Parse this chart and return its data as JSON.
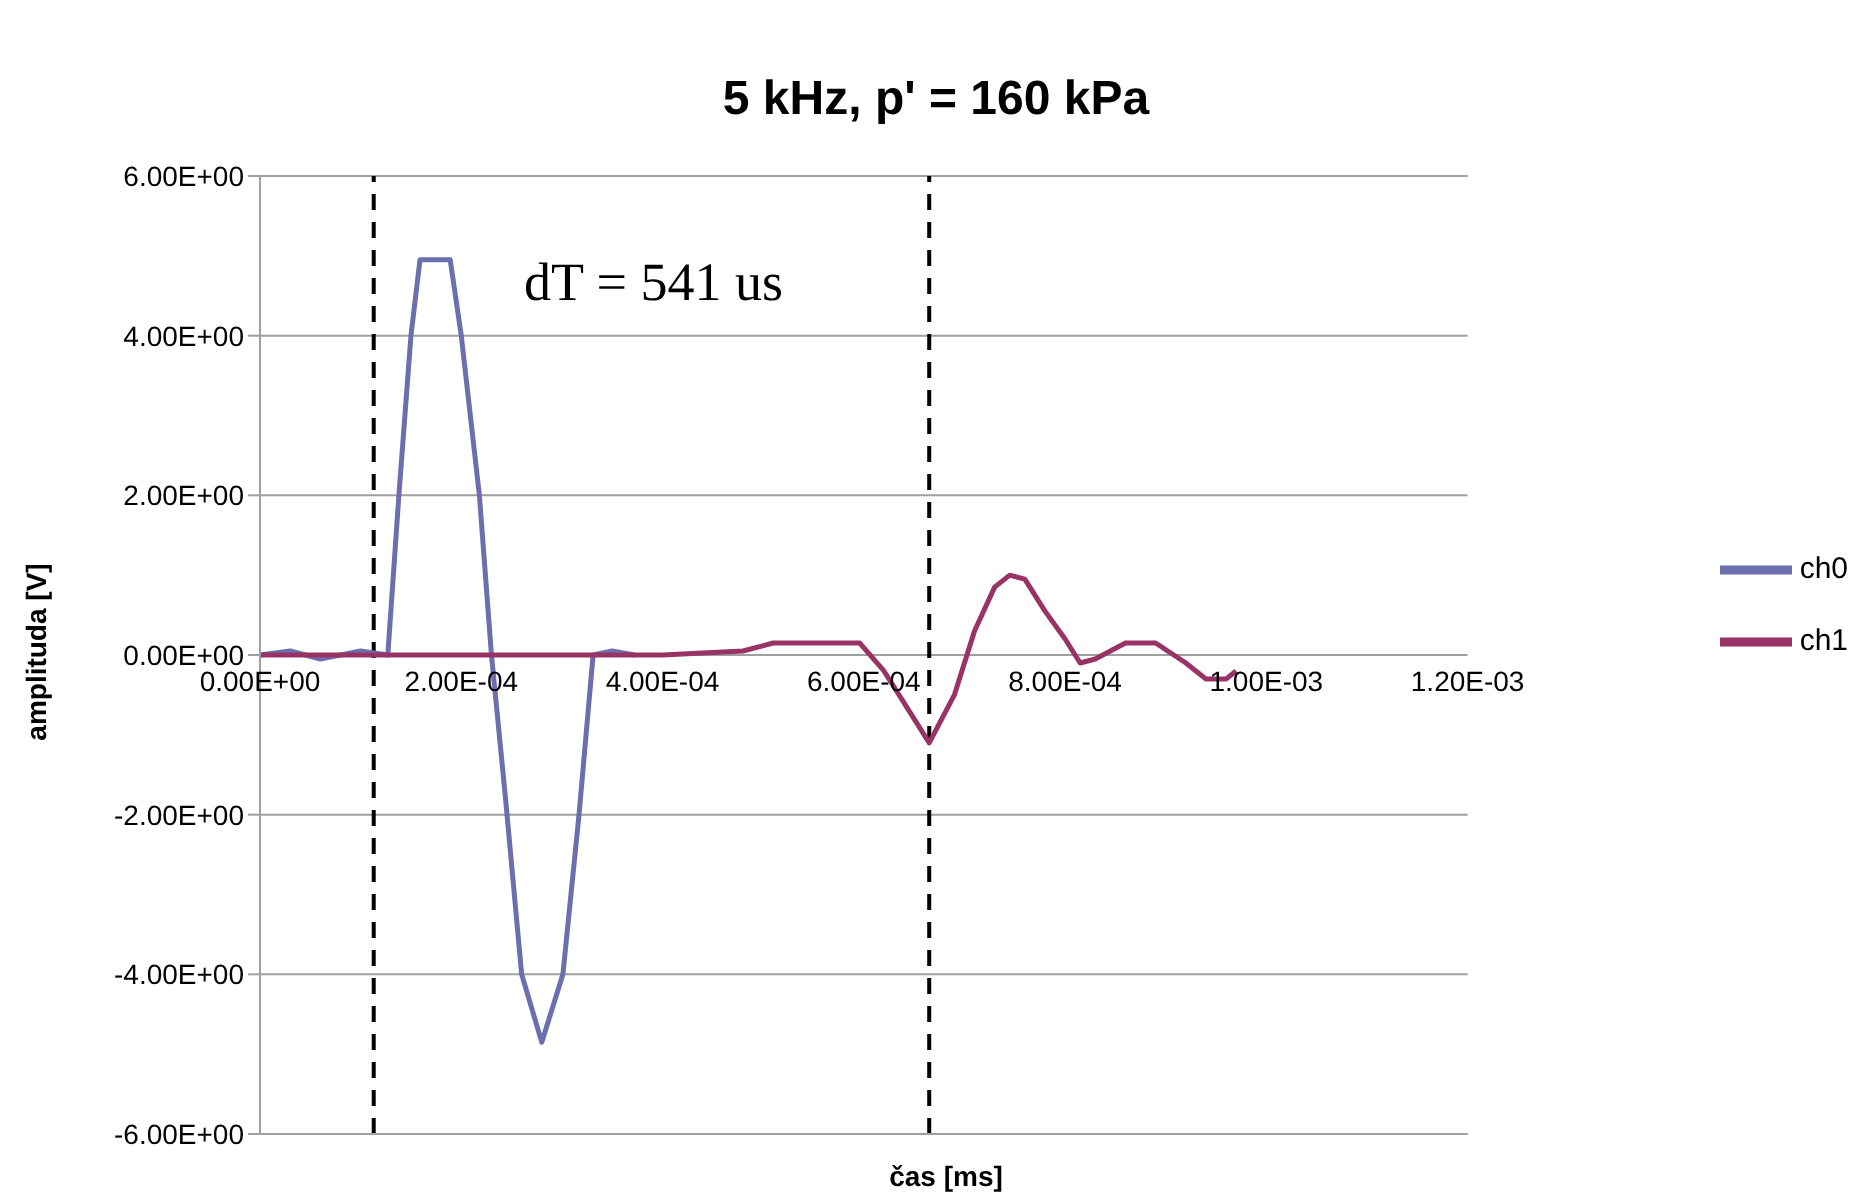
{
  "chart_data": {
    "type": "line",
    "title": "5 kHz, p' = 160 kPa",
    "xlabel": "čas [ms]",
    "ylabel": "amplituda [V]",
    "annotations": [
      "dT = 541 us"
    ],
    "series": [
      {
        "name": "ch0",
        "color": "#6b6fae",
        "x": [
          0,
          3e-05,
          6e-05,
          0.0001,
          0.000127,
          0.000138,
          0.00015,
          0.000159,
          0.000189,
          0.0002,
          0.000218,
          0.00023,
          0.000244,
          0.00026,
          0.00028,
          0.000301,
          0.000317,
          0.000331,
          0.00035,
          0.000372
        ],
        "values": [
          0,
          0.05,
          -0.05,
          0.05,
          0,
          2,
          4,
          4.95,
          4.95,
          4,
          2,
          0,
          -1.8,
          -4,
          -4.85,
          -4,
          -2,
          0,
          0.05,
          0
        ]
      },
      {
        "name": "ch1",
        "color": "#993366",
        "x": [
          0,
          0.0001,
          0.0002,
          0.0003,
          0.0004,
          0.00048,
          0.00051,
          0.000596,
          0.00062,
          0.00064,
          0.000665,
          0.00069,
          0.00071,
          0.00073,
          0.000745,
          0.00076,
          0.00078,
          0.0008,
          0.000815,
          0.00083,
          0.00086,
          0.00089,
          0.00092,
          0.00094,
          0.00096,
          0.00097
        ],
        "values": [
          0,
          0,
          0,
          0,
          0,
          0.05,
          0.15,
          0.15,
          -0.2,
          -0.6,
          -1.1,
          -0.5,
          0.3,
          0.85,
          1,
          0.95,
          0.55,
          0.2,
          -0.1,
          -0.05,
          0.15,
          0.15,
          -0.1,
          -0.3,
          -0.3,
          -0.2
        ]
      }
    ],
    "xlim": [
      0,
      0.0012
    ],
    "xticks": [
      {
        "value": 0,
        "label": "0.00E+00"
      },
      {
        "value": 0.0002,
        "label": "2.00E-04"
      },
      {
        "value": 0.0004,
        "label": "4.00E-04"
      },
      {
        "value": 0.0006,
        "label": "6.00E-04"
      },
      {
        "value": 0.0008,
        "label": "8.00E-04"
      },
      {
        "value": 0.001,
        "label": "1.00E-03"
      },
      {
        "value": 0.0012,
        "label": "1.20E-03"
      }
    ],
    "ylim": [
      -6,
      6
    ],
    "yticks": [
      {
        "value": -6,
        "label": "-6.00E+00"
      },
      {
        "value": -4,
        "label": "-4.00E+00"
      },
      {
        "value": -2,
        "label": "-2.00E+00"
      },
      {
        "value": 0,
        "label": "0.00E+00"
      },
      {
        "value": 2,
        "label": "2.00E+00"
      },
      {
        "value": 4,
        "label": "4.00E+00"
      },
      {
        "value": 6,
        "label": "6.00E+00"
      }
    ],
    "ref_lines": [
      {
        "axis": "x",
        "value": 0.000113,
        "color": "#000000",
        "line_style": "dashed"
      },
      {
        "axis": "x",
        "value": 0.000665,
        "color": "#000000",
        "line_style": "dashed"
      }
    ],
    "grid": "y",
    "legend": "right",
    "marker": "none",
    "line_style": "solid"
  }
}
